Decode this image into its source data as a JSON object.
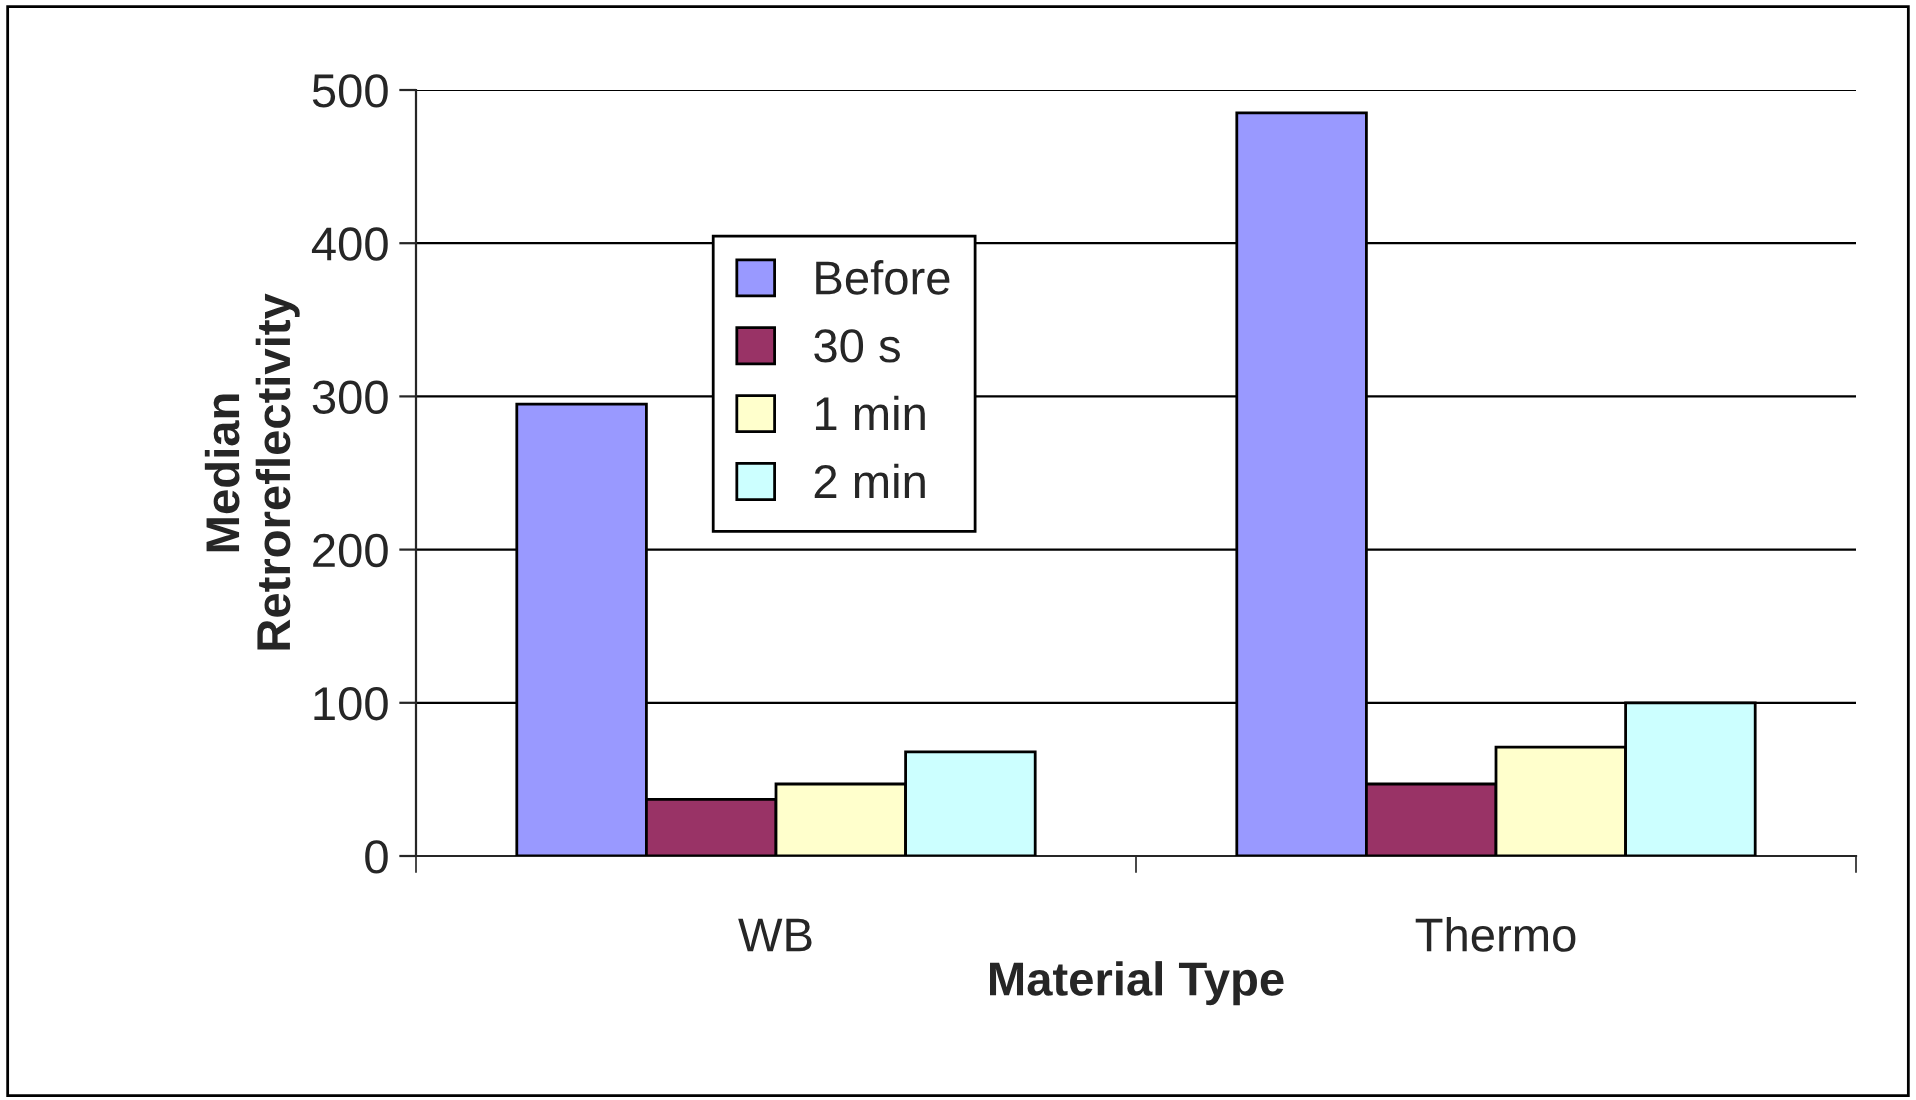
{
  "chart_data": {
    "type": "bar",
    "xlabel": "Material Type",
    "ylabel": "Median\nRetroreflectivity",
    "categories": [
      "WB",
      "Thermo"
    ],
    "series": [
      {
        "name": "Before",
        "color": "#9999ff",
        "values": [
          295,
          485
        ]
      },
      {
        "name": "30 s",
        "color": "#993366",
        "values": [
          37,
          47
        ]
      },
      {
        "name": "1 min",
        "color": "#ffffcc",
        "values": [
          47,
          71
        ]
      },
      {
        "name": "2 min",
        "color": "#ccffff",
        "values": [
          68,
          100
        ]
      }
    ],
    "ylim": [
      0,
      500
    ],
    "yticks": [
      0,
      100,
      200,
      300,
      400,
      500
    ],
    "grid": "y",
    "legend": "top left"
  }
}
